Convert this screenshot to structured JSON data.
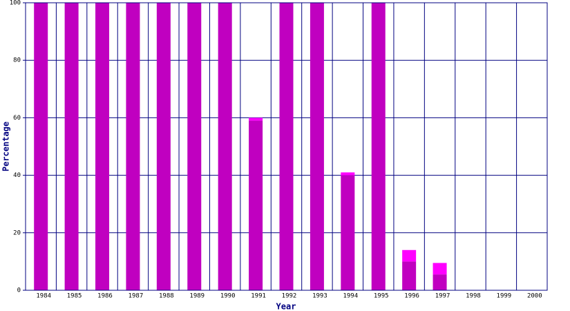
{
  "chart_data": {
    "type": "stacked_bar",
    "xlabel": "Year",
    "ylabel": "Percentage",
    "categories": [
      "1984",
      "1985",
      "1986",
      "1987",
      "1988",
      "1989",
      "1990",
      "1991",
      "1992",
      "1993",
      "1994",
      "1995",
      "1996",
      "1997",
      "1998",
      "1999",
      "2000"
    ],
    "series": [
      {
        "color": "#c000c0",
        "values": [
          100,
          100,
          100,
          100,
          100,
          100,
          100,
          59,
          100,
          100,
          40,
          100,
          10,
          5.5,
          0,
          0,
          0
        ]
      },
      {
        "color": "#ff00ff",
        "values": [
          0,
          0,
          0,
          0,
          0,
          0,
          0,
          1,
          0,
          0,
          1,
          0,
          4,
          4,
          0,
          0,
          0
        ]
      }
    ],
    "ylim": [
      0,
      100
    ],
    "yticks": [
      0,
      20,
      40,
      60,
      80,
      100
    ],
    "grid": true,
    "grid_color": "#000080"
  }
}
